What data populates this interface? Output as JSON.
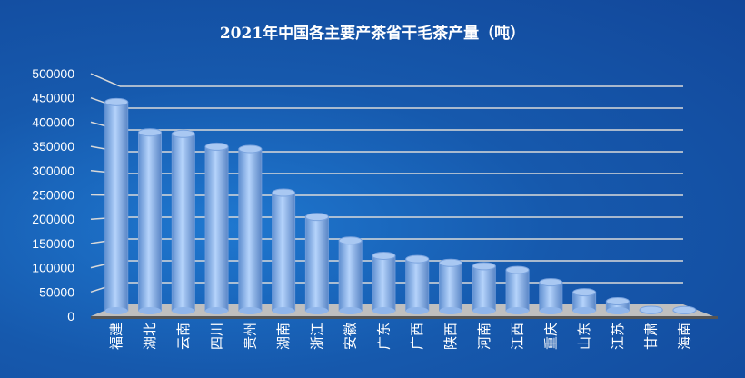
{
  "chart_data": {
    "type": "bar",
    "style": "3d-cylinder",
    "title": "2021年中国各主要产茶省干毛茶产量（吨）",
    "categories": [
      "福建",
      "湖北",
      "云南",
      "四川",
      "贵州",
      "湖南",
      "浙江",
      "安徽",
      "广东",
      "广西",
      "陕西",
      "河南",
      "江西",
      "重庆",
      "山东",
      "江苏",
      "甘肃",
      "海南"
    ],
    "values": [
      440000,
      376000,
      373000,
      346000,
      341000,
      249000,
      198000,
      148000,
      116000,
      109000,
      101000,
      94000,
      86000,
      60000,
      39000,
      20000,
      2000,
      1500
    ],
    "yticks": [
      "0",
      "50000",
      "100000",
      "150000",
      "200000",
      "250000",
      "300000",
      "350000",
      "400000",
      "450000",
      "500000"
    ],
    "ylim": [
      0,
      500000
    ],
    "grid": true,
    "colors": {
      "bar": "#8fb8ee",
      "gridline": "#d9d9d9",
      "floor": "#bfbfbf"
    }
  }
}
